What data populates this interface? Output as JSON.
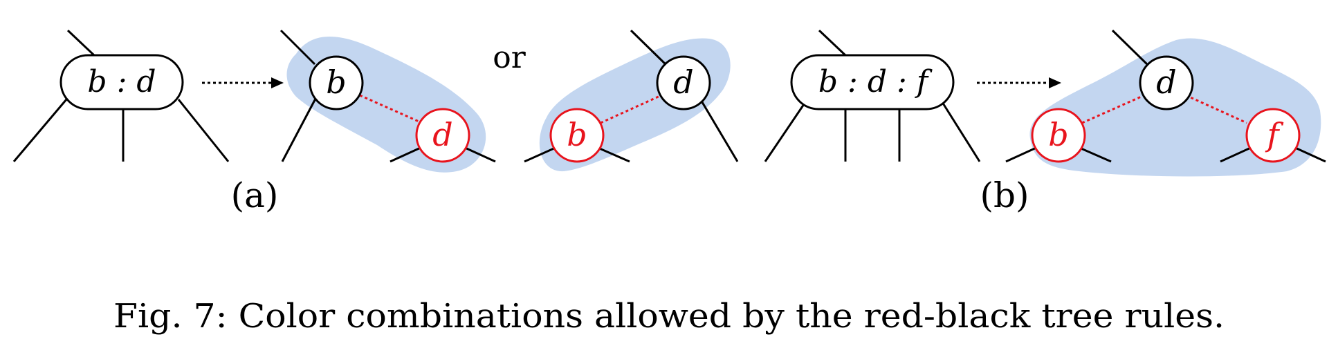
{
  "diagram": {
    "or_text": "or",
    "part_a_label": "(a)",
    "part_b_label": "(b)",
    "caption": "Fig. 7: Color combinations allowed by the red-black tree rules.",
    "nodes": {
      "a_node_text": "b : d",
      "a_black_b": "b",
      "a_red_d": "d",
      "a_black_d": "d",
      "a_red_b": "b",
      "b_node_text": "b : d : f",
      "b_black_d": "d",
      "b_red_b": "b",
      "b_red_f": "f"
    },
    "colors": {
      "black": "#000000",
      "red": "#e8141d",
      "highlight": "#c3d6f0",
      "background": "#ffffff"
    }
  }
}
